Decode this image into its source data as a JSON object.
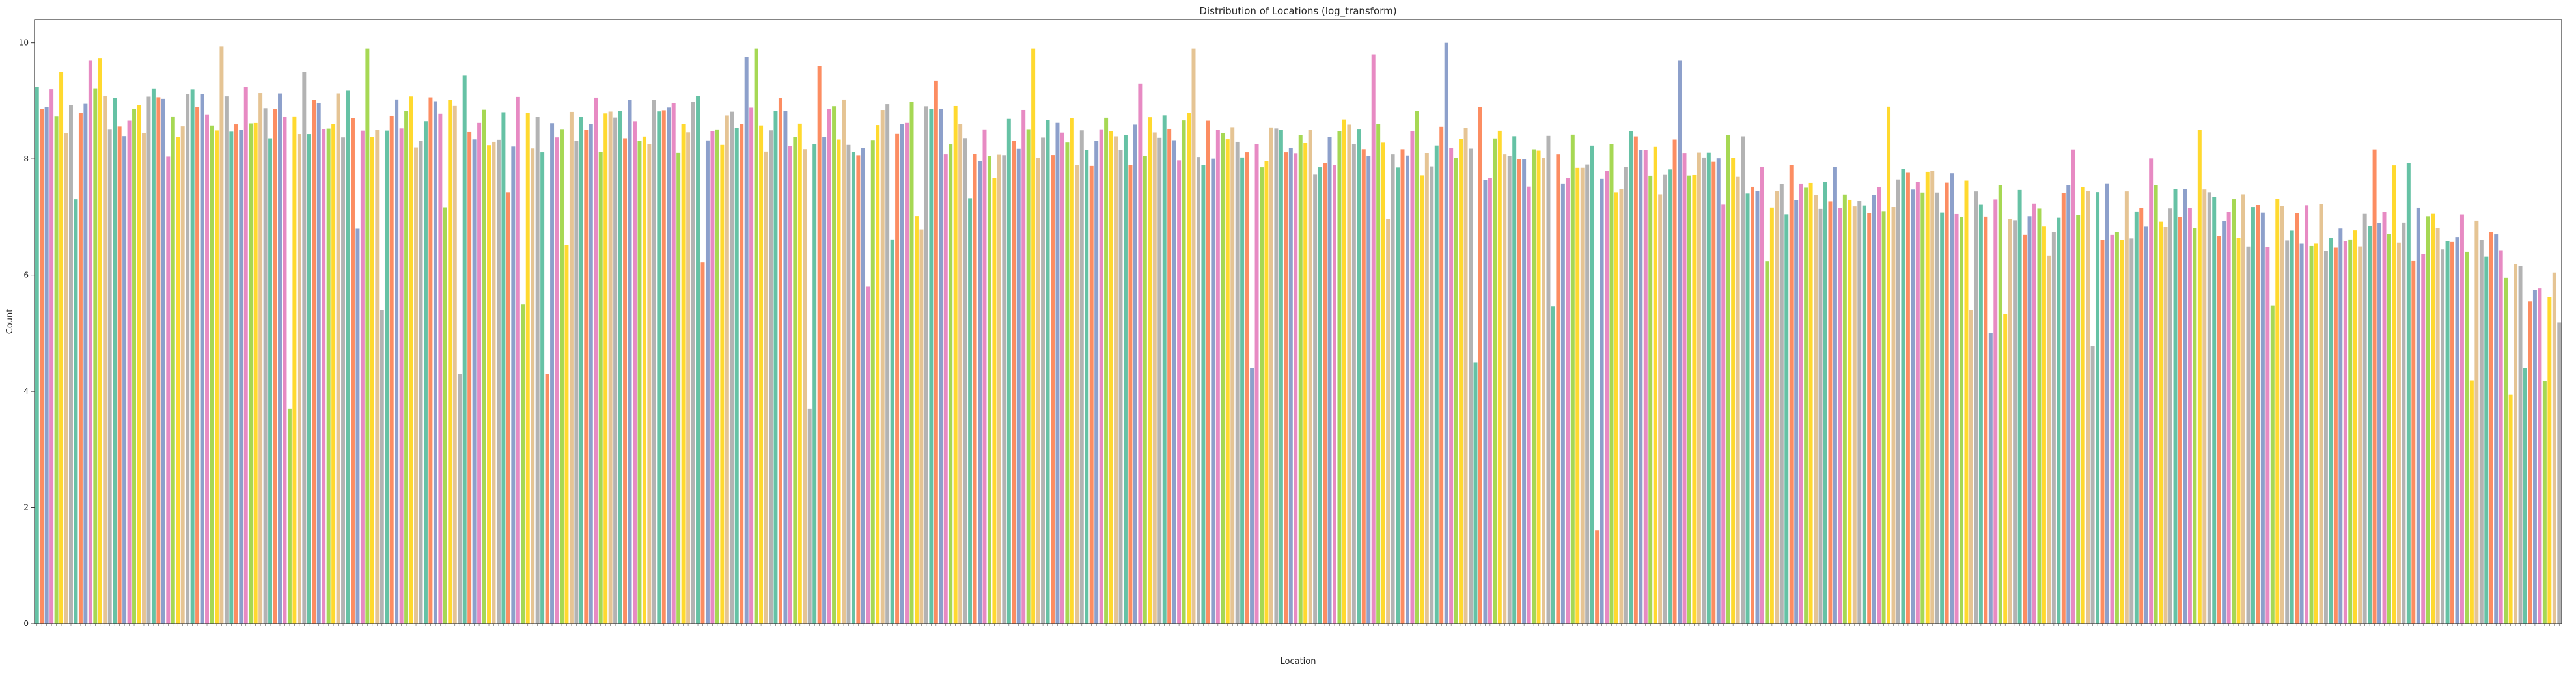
{
  "chart_data": {
    "type": "bar",
    "title": "Distribution of Locations (log_transform)",
    "xlabel": "Location",
    "ylabel": "Count",
    "ylim": [
      0,
      10.4
    ],
    "yticks": [
      0,
      2,
      4,
      6,
      8,
      10
    ],
    "grid": false,
    "legend": "none",
    "bar_count": 520,
    "palette": [
      "#66c2a5",
      "#fc8d62",
      "#8da0cb",
      "#e78ac3",
      "#a6d854",
      "#ffd92f",
      "#e5c494",
      "#b3b3b3"
    ],
    "category_note": "x tick labels are rotated and unreadable",
    "value_profile": [
      [
        0,
        8.8
      ],
      [
        30,
        8.8
      ],
      [
        60,
        8.7
      ],
      [
        90,
        8.6
      ],
      [
        120,
        8.6
      ],
      [
        150,
        8.6
      ],
      [
        180,
        8.5
      ],
      [
        210,
        8.4
      ],
      [
        240,
        8.3
      ],
      [
        270,
        8.2
      ],
      [
        300,
        8.0
      ],
      [
        330,
        7.9
      ],
      [
        360,
        7.5
      ],
      [
        390,
        7.3
      ],
      [
        420,
        7.1
      ],
      [
        450,
        7.0
      ],
      [
        480,
        6.8
      ],
      [
        500,
        6.6
      ],
      [
        519,
        5.6
      ]
    ],
    "notable_values": [
      {
        "index": 5,
        "value": 9.5
      },
      {
        "index": 11,
        "value": 9.7
      },
      {
        "index": 52,
        "value": 3.7
      },
      {
        "index": 55,
        "value": 9.5
      },
      {
        "index": 68,
        "value": 9.9
      },
      {
        "index": 71,
        "value": 5.4
      },
      {
        "index": 87,
        "value": 4.3
      },
      {
        "index": 100,
        "value": 5.5
      },
      {
        "index": 105,
        "value": 4.3
      },
      {
        "index": 148,
        "value": 9.9
      },
      {
        "index": 159,
        "value": 3.7
      },
      {
        "index": 161,
        "value": 9.6
      },
      {
        "index": 171,
        "value": 5.8
      },
      {
        "index": 205,
        "value": 9.9
      },
      {
        "index": 238,
        "value": 9.9
      },
      {
        "index": 250,
        "value": 4.4
      },
      {
        "index": 275,
        "value": 9.8
      },
      {
        "index": 290,
        "value": 10.0
      },
      {
        "index": 296,
        "value": 4.5
      },
      {
        "index": 321,
        "value": 1.6
      },
      {
        "index": 338,
        "value": 9.7
      },
      {
        "index": 381,
        "value": 8.9
      },
      {
        "index": 445,
        "value": 8.5
      },
      {
        "index": 500,
        "value": 6.4
      },
      {
        "index": 512,
        "value": 4.4
      }
    ]
  }
}
